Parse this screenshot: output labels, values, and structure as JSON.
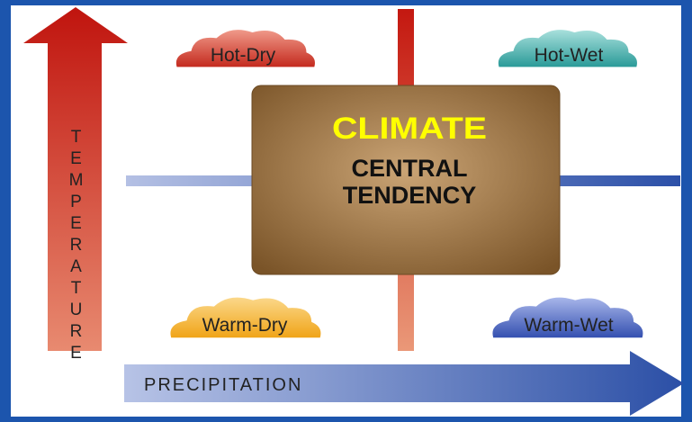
{
  "vertical_axis": {
    "label": "TEMPERATURE"
  },
  "horizontal_axis": {
    "label": "PRECIPITATION"
  },
  "center": {
    "title": "CLIMATE",
    "lines": [
      "CENTRAL",
      "TENDENCY"
    ]
  },
  "quadrants": [
    {
      "label": "Hot-Dry"
    },
    {
      "label": "Hot-Wet"
    },
    {
      "label": "Warm-Dry"
    },
    {
      "label": "Warm-Wet"
    }
  ]
}
